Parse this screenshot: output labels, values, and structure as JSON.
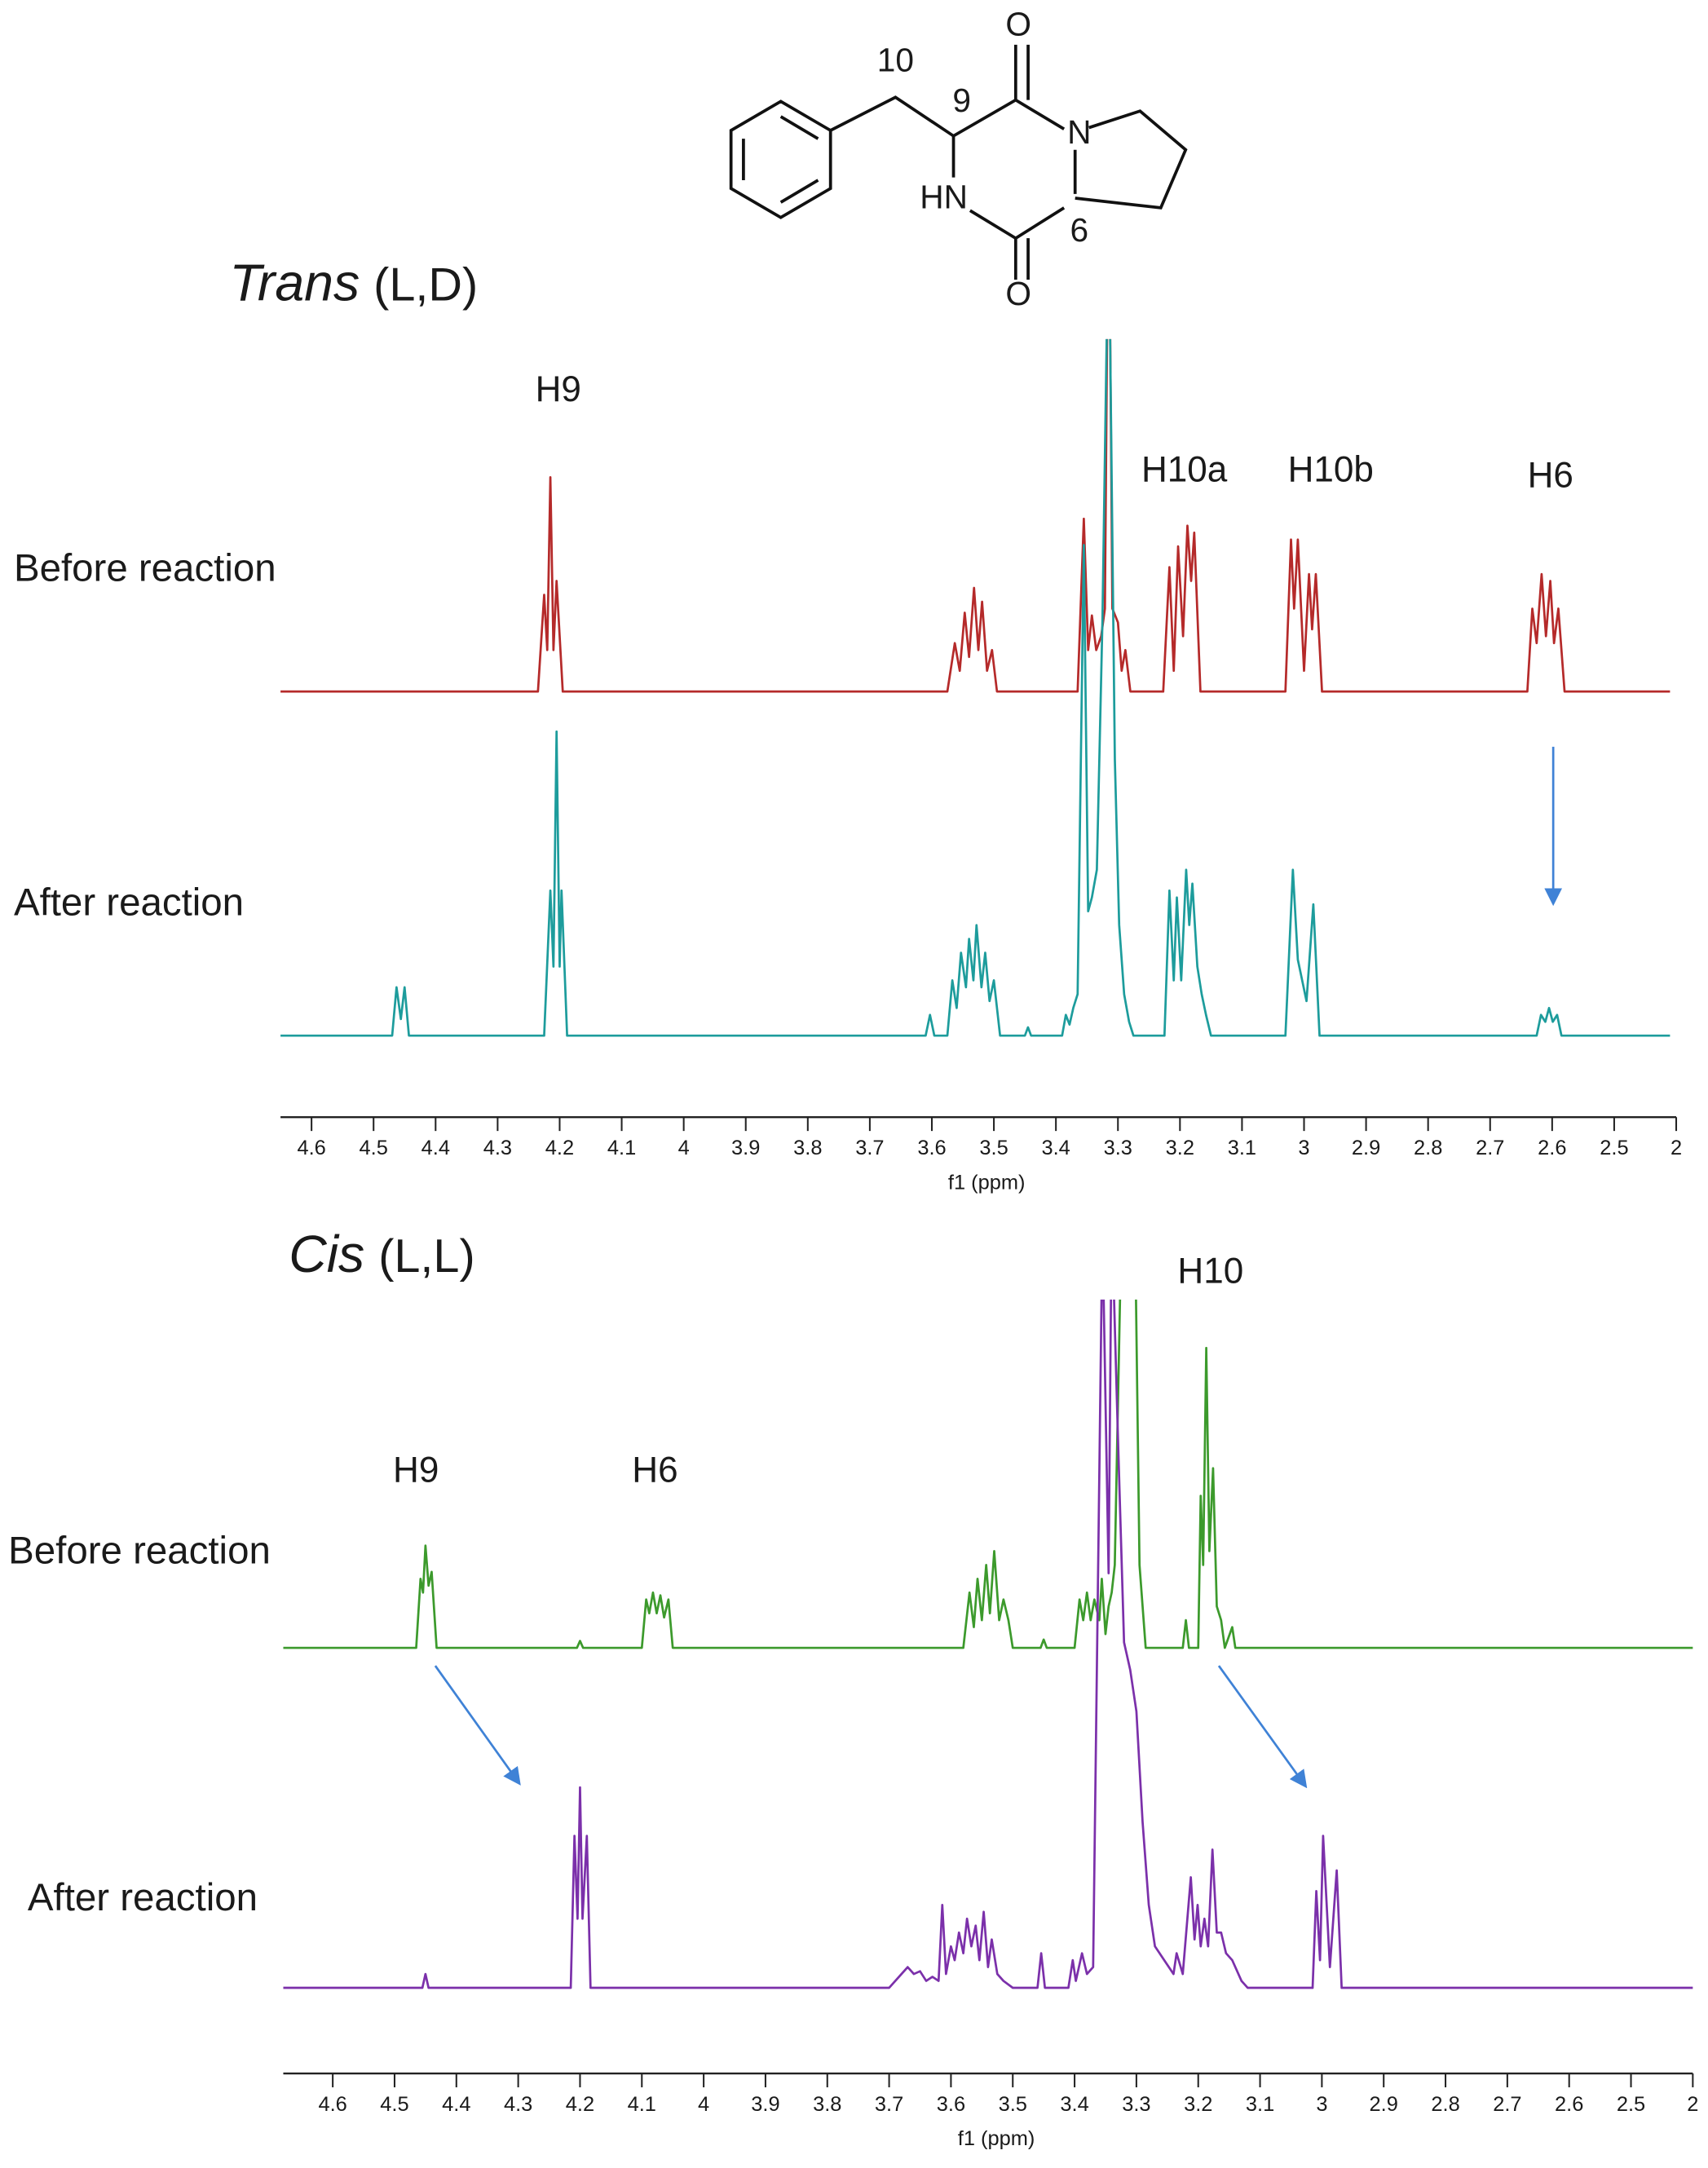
{
  "structure": {
    "labels": [
      "10",
      "9",
      "O",
      "N",
      "HN",
      "6",
      "O"
    ]
  },
  "chart_data": [
    {
      "type": "spectrum",
      "title": [
        "Trans",
        "(L,D)"
      ],
      "x_label": "f1 (ppm)",
      "xlim": [
        4.65,
        2.4
      ],
      "xticks": [
        4.6,
        4.5,
        4.4,
        4.3,
        4.2,
        4.1,
        4.0,
        3.9,
        3.8,
        3.7,
        3.6,
        3.5,
        3.4,
        3.3,
        3.2,
        3.1,
        3.0,
        2.9,
        2.8,
        2.7,
        2.6,
        2.5,
        {
          "value": 2.4,
          "label": "2"
        }
      ],
      "annotations": [
        "H9",
        "H10a",
        "H10b",
        "H6"
      ],
      "series": [
        {
          "name": "Before reaction",
          "color": "#b52a2a",
          "x": [
            4.65,
            4.235,
            4.225,
            4.22,
            4.215,
            4.21,
            4.205,
            4.195,
            3.575,
            3.563,
            3.555,
            3.547,
            3.54,
            3.532,
            3.525,
            3.519,
            3.511,
            3.503,
            3.495,
            3.365,
            3.355,
            3.348,
            3.342,
            3.335,
            3.327,
            3.321,
            3.315,
            3.309,
            3.3,
            3.294,
            3.288,
            3.28,
            3.227,
            3.217,
            3.21,
            3.203,
            3.195,
            3.188,
            3.182,
            3.177,
            3.167,
            3.03,
            3.021,
            3.016,
            3.01,
            3.0,
            2.992,
            2.987,
            2.981,
            2.971,
            2.64,
            2.632,
            2.625,
            2.617,
            2.61,
            2.603,
            2.597,
            2.59,
            2.58,
            2.41
          ],
          "values": [
            0,
            0,
            70,
            30,
            155,
            30,
            80,
            0,
            0,
            35,
            15,
            57,
            25,
            75,
            30,
            65,
            15,
            30,
            0,
            0,
            125,
            30,
            55,
            30,
            40,
            60,
            400,
            60,
            50,
            15,
            30,
            0,
            0,
            90,
            15,
            105,
            40,
            120,
            80,
            115,
            0,
            0,
            110,
            60,
            110,
            15,
            85,
            45,
            85,
            0,
            0,
            60,
            35,
            85,
            40,
            80,
            35,
            60,
            0,
            0
          ]
        },
        {
          "name": "After reaction",
          "color": "#1d9c9c",
          "x": [
            4.65,
            4.47,
            4.463,
            4.456,
            4.45,
            4.443,
            4.225,
            4.215,
            4.21,
            4.205,
            4.2,
            4.197,
            4.188,
            3.61,
            3.603,
            3.596,
            3.575,
            3.567,
            3.56,
            3.553,
            3.545,
            3.54,
            3.533,
            3.528,
            3.52,
            3.514,
            3.507,
            3.5,
            3.49,
            3.45,
            3.445,
            3.44,
            3.39,
            3.384,
            3.378,
            3.372,
            3.365,
            3.355,
            3.348,
            3.342,
            3.334,
            3.325,
            3.315,
            3.305,
            3.298,
            3.29,
            3.282,
            3.275,
            3.225,
            3.217,
            3.21,
            3.205,
            3.198,
            3.19,
            3.185,
            3.18,
            3.172,
            3.165,
            3.158,
            3.15,
            3.03,
            3.018,
            3.01,
            3.003,
            2.996,
            2.985,
            2.975,
            2.625,
            2.618,
            2.611,
            2.605,
            2.599,
            2.592,
            2.585,
            2.41
          ],
          "values": [
            0,
            0,
            35,
            12,
            35,
            0,
            0,
            105,
            50,
            220,
            50,
            105,
            0,
            0,
            15,
            0,
            0,
            40,
            20,
            60,
            35,
            70,
            40,
            80,
            35,
            60,
            25,
            40,
            0,
            0,
            6,
            0,
            0,
            15,
            8,
            20,
            30,
            355,
            90,
            100,
            120,
            300,
            600,
            200,
            80,
            30,
            10,
            0,
            0,
            105,
            40,
            100,
            40,
            120,
            80,
            110,
            50,
            30,
            15,
            0,
            0,
            120,
            55,
            40,
            25,
            95,
            0,
            0,
            15,
            10,
            20,
            10,
            15,
            0,
            0
          ]
        }
      ]
    },
    {
      "type": "spectrum",
      "title": [
        "Cis",
        "(L,L)"
      ],
      "x_label": "f1 (ppm)",
      "xlim": [
        4.68,
        2.4
      ],
      "xticks": [
        4.6,
        4.5,
        4.4,
        4.3,
        4.2,
        4.1,
        4.0,
        3.9,
        3.8,
        3.7,
        3.6,
        3.5,
        3.4,
        3.3,
        3.2,
        3.1,
        3.0,
        2.9,
        2.8,
        2.7,
        2.6,
        2.5,
        {
          "value": 2.4,
          "label": "2"
        }
      ],
      "annotations": [
        "H9",
        "H6",
        "H10"
      ],
      "series": [
        {
          "name": "Before reaction",
          "color": "#3c9a2c",
          "x": [
            4.68,
            4.465,
            4.458,
            4.454,
            4.45,
            4.445,
            4.44,
            4.432,
            4.205,
            4.2,
            4.195,
            4.1,
            4.093,
            4.088,
            4.082,
            4.076,
            4.07,
            4.064,
            4.057,
            4.05,
            3.58,
            3.57,
            3.563,
            3.557,
            3.55,
            3.543,
            3.537,
            3.53,
            3.522,
            3.515,
            3.507,
            3.5,
            3.455,
            3.45,
            3.445,
            3.4,
            3.392,
            3.386,
            3.38,
            3.374,
            3.368,
            3.36,
            3.356,
            3.35,
            3.345,
            3.34,
            3.335,
            3.32,
            3.305,
            3.295,
            3.285,
            3.225,
            3.22,
            3.215,
            3.2,
            3.196,
            3.192,
            3.187,
            3.182,
            3.176,
            3.17,
            3.163,
            3.157,
            3.145,
            3.14,
            2.4
          ],
          "values": [
            0,
            0,
            50,
            40,
            74,
            45,
            55,
            0,
            0,
            5,
            0,
            0,
            35,
            25,
            40,
            25,
            38,
            22,
            35,
            0,
            0,
            40,
            15,
            50,
            20,
            60,
            25,
            70,
            20,
            35,
            20,
            0,
            0,
            6,
            0,
            0,
            35,
            20,
            40,
            20,
            35,
            20,
            50,
            10,
            30,
            40,
            60,
            400,
            400,
            60,
            0,
            0,
            20,
            0,
            0,
            110,
            60,
            217,
            70,
            130,
            30,
            20,
            0,
            15,
            0,
            0
          ]
        },
        {
          "name": "After reaction",
          "color": "#7b30aa",
          "x": [
            4.68,
            4.455,
            4.45,
            4.445,
            4.215,
            4.209,
            4.204,
            4.2,
            4.196,
            4.189,
            4.183,
            3.7,
            3.68,
            3.67,
            3.66,
            3.65,
            3.64,
            3.63,
            3.62,
            3.614,
            3.608,
            3.6,
            3.594,
            3.587,
            3.58,
            3.574,
            3.567,
            3.56,
            3.554,
            3.547,
            3.54,
            3.534,
            3.525,
            3.515,
            3.5,
            3.46,
            3.454,
            3.448,
            3.41,
            3.403,
            3.398,
            3.388,
            3.38,
            3.37,
            3.355,
            3.345,
            3.34,
            3.33,
            3.32,
            3.31,
            3.3,
            3.29,
            3.28,
            3.27,
            3.255,
            3.24,
            3.235,
            3.225,
            3.212,
            3.206,
            3.201,
            3.196,
            3.19,
            3.184,
            3.177,
            3.17,
            3.163,
            3.155,
            3.145,
            3.13,
            3.12,
            3.015,
            3.009,
            3.003,
            2.998,
            2.987,
            2.976,
            2.968,
            2.4
          ],
          "values": [
            0,
            0,
            10,
            0,
            0,
            110,
            50,
            145,
            50,
            110,
            0,
            0,
            10,
            15,
            10,
            12,
            5,
            8,
            5,
            60,
            10,
            30,
            20,
            40,
            25,
            50,
            30,
            45,
            20,
            55,
            15,
            35,
            10,
            5,
            0,
            0,
            25,
            0,
            0,
            20,
            5,
            25,
            10,
            15,
            550,
            300,
            560,
            400,
            250,
            230,
            200,
            120,
            60,
            30,
            20,
            10,
            25,
            10,
            80,
            35,
            60,
            30,
            50,
            30,
            100,
            40,
            40,
            25,
            20,
            5,
            0,
            0,
            70,
            20,
            110,
            15,
            85,
            0,
            0
          ]
        }
      ]
    }
  ]
}
